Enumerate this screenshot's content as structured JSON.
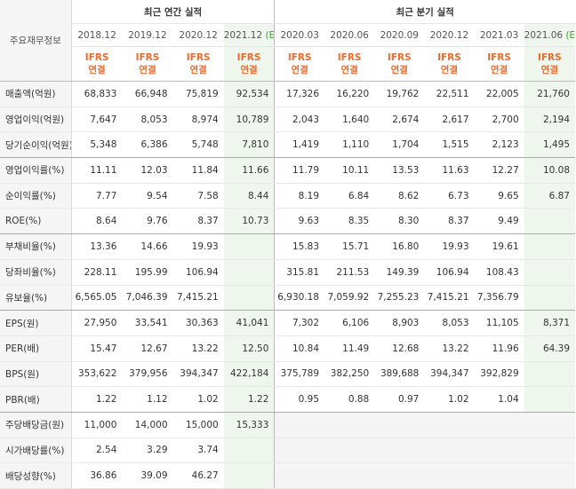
{
  "header": {
    "row_label": "주요재무정보",
    "annual_group": "최근 연간 실적",
    "quarter_group": "최근 분기 실적",
    "annual_dates": [
      "2018.12",
      "2019.12",
      "2020.12",
      "2021.12"
    ],
    "annual_est_mark": "(E)",
    "quarter_dates": [
      "2020.03",
      "2020.06",
      "2020.09",
      "2020.12",
      "2021.03",
      "2021.06"
    ],
    "quarter_est_mark": "(E)",
    "ifrs_top": "IFRS",
    "ifrs_bottom": "연결"
  },
  "rows": [
    {
      "label": "매출액(억원)",
      "values": [
        "68,833",
        "66,948",
        "75,819",
        "92,534",
        "17,326",
        "16,220",
        "19,762",
        "22,511",
        "22,005",
        "21,760"
      ]
    },
    {
      "label": "영업이익(억원)",
      "values": [
        "7,647",
        "8,053",
        "8,974",
        "10,789",
        "2,043",
        "1,640",
        "2,674",
        "2,617",
        "2,700",
        "2,194"
      ]
    },
    {
      "label": "당기순이익(억원)",
      "values": [
        "5,348",
        "6,386",
        "5,748",
        "7,810",
        "1,419",
        "1,110",
        "1,704",
        "1,515",
        "2,123",
        "1,495"
      ]
    },
    {
      "label": "영업이익률(%)",
      "values": [
        "11.11",
        "12.03",
        "11.84",
        "11.66",
        "11.79",
        "10.11",
        "13.53",
        "11.63",
        "12.27",
        "10.08"
      ]
    },
    {
      "label": "순이익률(%)",
      "values": [
        "7.77",
        "9.54",
        "7.58",
        "8.44",
        "8.19",
        "6.84",
        "8.62",
        "6.73",
        "9.65",
        "6.87"
      ]
    },
    {
      "label": "ROE(%)",
      "values": [
        "8.64",
        "9.76",
        "8.37",
        "10.73",
        "9.63",
        "8.35",
        "8.30",
        "8.37",
        "9.49",
        ""
      ]
    },
    {
      "label": "부채비율(%)",
      "values": [
        "13.36",
        "14.66",
        "19.93",
        "",
        "15.83",
        "15.71",
        "16.80",
        "19.93",
        "19.61",
        ""
      ]
    },
    {
      "label": "당좌비율(%)",
      "values": [
        "228.11",
        "195.99",
        "106.94",
        "",
        "315.81",
        "211.53",
        "149.39",
        "106.94",
        "108.43",
        ""
      ]
    },
    {
      "label": "유보율(%)",
      "values": [
        "6,565.05",
        "7,046.39",
        "7,415.21",
        "",
        "6,930.18",
        "7,059.92",
        "7,255.23",
        "7,415.21",
        "7,356.79",
        ""
      ]
    },
    {
      "label": "EPS(원)",
      "values": [
        "27,950",
        "33,541",
        "30,363",
        "41,041",
        "7,302",
        "6,106",
        "8,903",
        "8,053",
        "11,105",
        "8,371"
      ]
    },
    {
      "label": "PER(배)",
      "values": [
        "15.47",
        "12.67",
        "13.22",
        "12.50",
        "10.84",
        "11.49",
        "12.68",
        "13.22",
        "11.96",
        "64.39"
      ]
    },
    {
      "label": "BPS(원)",
      "values": [
        "353,622",
        "379,956",
        "394,347",
        "422,184",
        "375,789",
        "382,250",
        "389,688",
        "394,347",
        "392,829",
        ""
      ]
    },
    {
      "label": "PBR(배)",
      "values": [
        "1.22",
        "1.12",
        "1.02",
        "1.22",
        "0.95",
        "0.88",
        "0.97",
        "1.02",
        "1.04",
        ""
      ]
    },
    {
      "label": "주당배당금(원)",
      "values": [
        "11,000",
        "14,000",
        "15,000",
        "15,333",
        "",
        "",
        "",
        "",
        "",
        ""
      ]
    },
    {
      "label": "시가배당률(%)",
      "values": [
        "2.54",
        "3.29",
        "3.74",
        "",
        "",
        "",
        "",
        "",
        "",
        ""
      ]
    },
    {
      "label": "배당성향(%)",
      "values": [
        "36.86",
        "39.09",
        "46.27",
        "",
        "",
        "",
        "",
        "",
        "",
        ""
      ]
    }
  ]
}
